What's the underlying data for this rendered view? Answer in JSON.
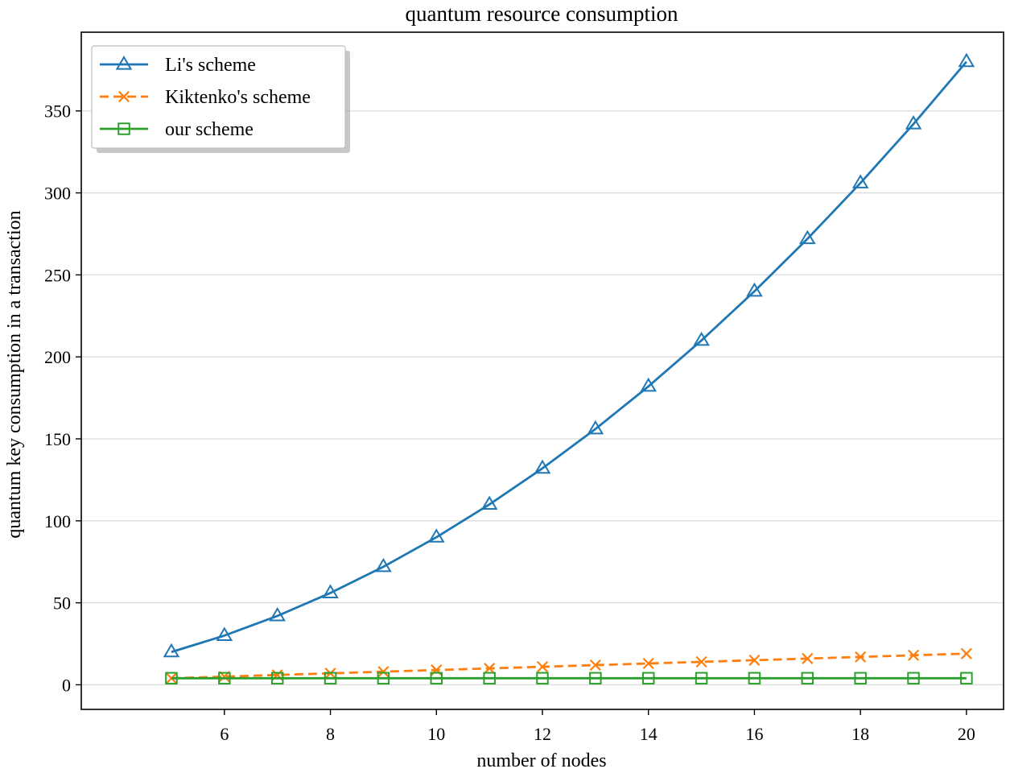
{
  "chart_data": {
    "type": "line",
    "title": "quantum resource consumption",
    "xlabel": "number of nodes",
    "ylabel": "quantum key consumption in a transaction",
    "x": [
      5,
      6,
      7,
      8,
      9,
      10,
      11,
      12,
      13,
      14,
      15,
      16,
      17,
      18,
      19,
      20
    ],
    "xlim": [
      3.3,
      20.7
    ],
    "ylim": [
      -15,
      398
    ],
    "xticks": [
      6,
      8,
      10,
      12,
      14,
      16,
      18,
      20
    ],
    "yticks": [
      0,
      50,
      100,
      150,
      200,
      250,
      300,
      350
    ],
    "grid": "horizontal",
    "legend_position": "top-left",
    "series": [
      {
        "name": "Li's scheme",
        "color": "#1f77b4",
        "marker": "triangle",
        "linestyle": "solid",
        "values": [
          20,
          30,
          42,
          56,
          72,
          90,
          110,
          132,
          156,
          182,
          210,
          240,
          272,
          306,
          342,
          380
        ]
      },
      {
        "name": "Kiktenko's scheme",
        "color": "#ff7f0e",
        "marker": "x",
        "linestyle": "dashed",
        "values": [
          4,
          5,
          6,
          7,
          8,
          9,
          10,
          11,
          12,
          13,
          14,
          15,
          16,
          17,
          18,
          19
        ]
      },
      {
        "name": "our scheme",
        "color": "#2ca02c",
        "marker": "square",
        "linestyle": "solid",
        "values": [
          4,
          4,
          4,
          4,
          4,
          4,
          4,
          4,
          4,
          4,
          4,
          4,
          4,
          4,
          4,
          4
        ]
      }
    ]
  }
}
